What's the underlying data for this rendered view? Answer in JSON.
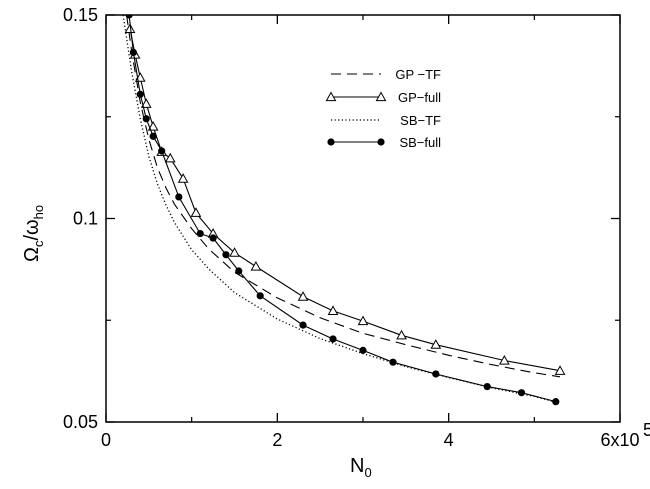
{
  "chart_data": {
    "type": "line",
    "xlabel": {
      "main": "N",
      "sub": "0"
    },
    "ylabel": {
      "main1": "Ω",
      "sub1": "c",
      "main2": "/ω",
      "sub2": "ho"
    },
    "xlim": [
      0,
      600000
    ],
    "ylim": [
      0.05,
      0.15
    ],
    "x_ticks": [
      {
        "value": 0,
        "label": "0"
      },
      {
        "value": 200000,
        "label": "2"
      },
      {
        "value": 400000,
        "label": "4"
      },
      {
        "value": 600000,
        "label": "6x10"
      }
    ],
    "x_tick_exponent": "5",
    "y_ticks": [
      {
        "value": 0.05,
        "label": "0.05"
      },
      {
        "value": 0.1,
        "label": "0.1"
      },
      {
        "value": 0.15,
        "label": "0.15"
      }
    ],
    "grid": false,
    "legend_position": "top-right",
    "series": [
      {
        "name": "GP −TF",
        "style": "dashed",
        "marker": "none",
        "x": [
          24000,
          30000,
          40000,
          50000,
          60000,
          70000,
          80000,
          100000,
          120000,
          150000,
          200000,
          250000,
          300000,
          350000,
          400000,
          450000,
          500000,
          530000
        ],
        "y": [
          0.15,
          0.141,
          0.1285,
          0.1195,
          0.1125,
          0.1075,
          0.1035,
          0.0975,
          0.0925,
          0.0868,
          0.0805,
          0.0756,
          0.0718,
          0.069,
          0.0664,
          0.0641,
          0.0621,
          0.0611
        ]
      },
      {
        "name": "GP−full",
        "style": "solid",
        "marker": "open-triangle",
        "x": [
          28000,
          34000,
          40000,
          47000,
          55000,
          65000,
          75000,
          90000,
          105000,
          125000,
          150000,
          175000,
          230000,
          265000,
          300000,
          345000,
          385000,
          465000,
          530000
        ],
        "y": [
          0.1466,
          0.1403,
          0.1346,
          0.1282,
          0.1226,
          0.1164,
          0.1148,
          0.1098,
          0.1014,
          0.0963,
          0.0916,
          0.0882,
          0.0808,
          0.0773,
          0.0748,
          0.0713,
          0.069,
          0.0651,
          0.0626
        ]
      },
      {
        "name": "SB−TF",
        "style": "dotted",
        "marker": "none",
        "x": [
          20000,
          25000,
          30000,
          40000,
          50000,
          60000,
          70000,
          80000,
          100000,
          120000,
          150000,
          200000,
          250000,
          300000,
          350000,
          400000,
          450000,
          500000,
          530000
        ],
        "y": [
          0.15,
          0.143,
          0.136,
          0.1245,
          0.1153,
          0.1085,
          0.1033,
          0.099,
          0.0923,
          0.0876,
          0.0818,
          0.0753,
          0.0705,
          0.0668,
          0.0636,
          0.0609,
          0.0584,
          0.0563,
          0.0546
        ]
      },
      {
        "name": "SB−full",
        "style": "solid",
        "marker": "filled-circle",
        "x": [
          27000,
          32000,
          40000,
          47000,
          55000,
          65000,
          85000,
          110000,
          125000,
          140000,
          155000,
          180000,
          230000,
          265000,
          300000,
          335000,
          385000,
          445000,
          485000,
          525000
        ],
        "y": [
          0.15,
          0.1408,
          0.1305,
          0.1245,
          0.1202,
          0.1166,
          0.1053,
          0.0963,
          0.0952,
          0.0911,
          0.0871,
          0.081,
          0.0738,
          0.0704,
          0.0676,
          0.0647,
          0.0618,
          0.0587,
          0.0572,
          0.055
        ]
      }
    ]
  }
}
